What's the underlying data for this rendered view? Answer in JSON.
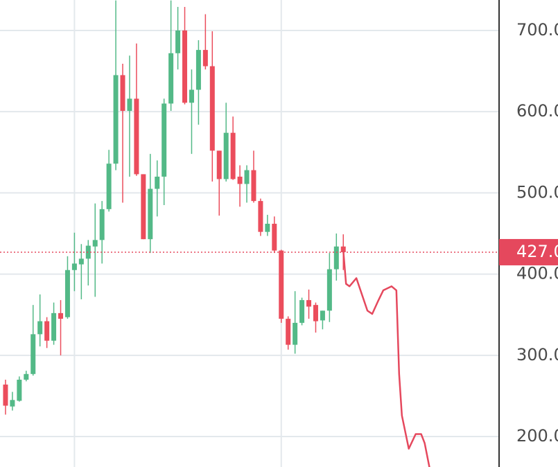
{
  "chart_data": {
    "type": "candlestick",
    "open": [
      264,
      237,
      244,
      270,
      277,
      326,
      342,
      318,
      352,
      347,
      405,
      412,
      419,
      434,
      442,
      480,
      536,
      645,
      601,
      616,
      523,
      443,
      505,
      520,
      610,
      672,
      700,
      611,
      627,
      676,
      656,
      552,
      517,
      574,
      520,
      511,
      528,
      490,
      452,
      462,
      429,
      345,
      313,
      340,
      368,
      362,
      343,
      355,
      406,
      434
    ],
    "high": [
      270,
      255,
      274,
      281,
      362,
      375,
      347,
      365,
      368,
      422,
      451,
      437,
      442,
      487,
      490,
      553,
      737,
      659,
      669,
      684,
      523,
      548,
      540,
      616,
      737,
      729,
      729,
      652,
      688,
      720,
      699,
      552,
      611,
      594,
      534,
      534,
      552,
      493,
      473,
      471,
      430,
      348,
      379,
      371,
      381,
      365,
      355,
      426,
      450,
      449
    ],
    "low": [
      227,
      232,
      243,
      268,
      275,
      311,
      309,
      313,
      300,
      345,
      379,
      369,
      386,
      372,
      413,
      477,
      528,
      488,
      520,
      521,
      443,
      426,
      471,
      485,
      601,
      652,
      609,
      548,
      584,
      652,
      514,
      472,
      514,
      516,
      483,
      488,
      488,
      447,
      447,
      426,
      340,
      307,
      302,
      337,
      345,
      328,
      332,
      341,
      392,
      405
    ],
    "close": [
      238,
      245,
      270,
      277,
      326,
      342,
      318,
      352,
      345,
      405,
      413,
      419,
      435,
      442,
      480,
      536,
      645,
      601,
      616,
      523,
      443,
      505,
      520,
      610,
      672,
      700,
      611,
      627,
      676,
      656,
      552,
      517,
      574,
      517,
      511,
      528,
      490,
      452,
      462,
      429,
      345,
      313,
      340,
      368,
      360,
      342,
      355,
      406,
      434,
      427
    ],
    "up_color": "#53b987",
    "down_color": "#eb4d5c",
    "line": {
      "color": "#e5485d",
      "x": [
        49.0,
        49.4,
        49.9,
        50.9,
        51.7,
        52.5,
        53.2,
        54.0,
        54.8,
        56.0,
        56.7,
        57.1,
        57.5,
        58.5,
        59.5,
        60.3,
        60.8,
        61.5
      ],
      "values": [
        429,
        388,
        385,
        395,
        375,
        355,
        351,
        366,
        380,
        385,
        380,
        277,
        226,
        185,
        203,
        203,
        192,
        162
      ]
    },
    "last_price": {
      "value": 427,
      "label": "427.0",
      "color": "#e5485d"
    },
    "xlim": [
      -0.8,
      71.6
    ],
    "xticks": [
      10,
      40
    ],
    "ylim": [
      162.5,
      737.5
    ],
    "yticks": [
      {
        "value": 200,
        "label": "200.0"
      },
      {
        "value": 300,
        "label": "300.0"
      },
      {
        "value": 400,
        "label": "400.0"
      },
      {
        "value": 500,
        "label": "500.0"
      },
      {
        "value": 600,
        "label": "600.0"
      },
      {
        "value": 700,
        "label": "700.0"
      }
    ],
    "grid": true
  }
}
